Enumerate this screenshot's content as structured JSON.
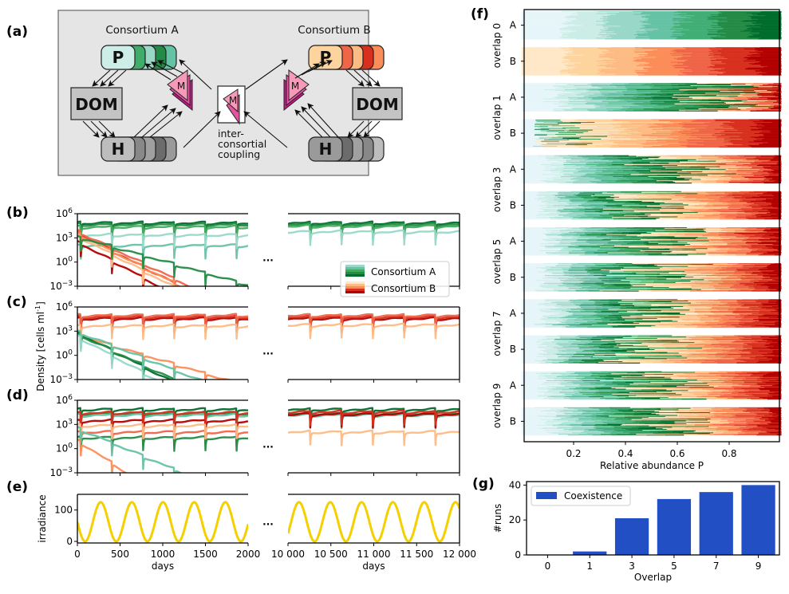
{
  "panel_labels": {
    "a": "(a)",
    "b": "(b)",
    "c": "(c)",
    "d": "(d)",
    "e": "(e)",
    "f": "(f)",
    "g": "(g)"
  },
  "diagram": {
    "consortium_a": "Consortium A",
    "consortium_b": "Consortium B",
    "p_label": "P",
    "h_label": "H",
    "dom_label": "DOM",
    "m_label": "M",
    "coupling_label": [
      "inter-",
      "consortial",
      "coupling"
    ],
    "colors": {
      "a_p": [
        "#cdeee6",
        "#41ab6c",
        "#9ad8c6",
        "#238b45",
        "#66c2a4"
      ],
      "b_p": [
        "#fdd49e",
        "#ef6548",
        "#fdbb84",
        "#d7301f",
        "#fc8d59"
      ],
      "h": [
        "#bdbdbd",
        "#888888",
        "#a0a0a0",
        "#6c6c6c",
        "#9a9a9a"
      ],
      "m": [
        "#f59ab8",
        "#e0559e",
        "#c7168a"
      ]
    }
  },
  "chart_data": [
    {
      "id": "b",
      "type": "line",
      "title": "",
      "ylabel": "",
      "yscale": "log",
      "ylim": [
        0.001,
        1000000
      ],
      "yticks": [
        "10^6",
        "10^3",
        "10^0",
        "10^-3"
      ],
      "xlim_left": [
        0,
        2000
      ],
      "xlim_right": [
        10000,
        12000
      ],
      "description": "Consortium A (greens) persists near 10^4-10^5 cells/ml; Consortium B (reds) decays to extinction within ~1400 days",
      "series": [
        {
          "name": "A1",
          "group": "A",
          "color": "#006d2c",
          "level_left": 4.8,
          "decay_left": 0,
          "level_right": 4.8
        },
        {
          "name": "A2",
          "group": "A",
          "color": "#238b45",
          "level_left": 4.6,
          "decay_left": 0,
          "level_right": 4.6
        },
        {
          "name": "A3",
          "group": "A",
          "color": "#41ab5d",
          "level_left": 4.3,
          "decay_left": 0,
          "level_right": 4.4
        },
        {
          "name": "A4",
          "group": "A",
          "color": "#66c2a4",
          "level_left": 2.0,
          "decay_left": 0,
          "level_right": null
        },
        {
          "name": "A5",
          "group": "A",
          "color": "#99d8c9",
          "level_left": 3.3,
          "decay_left": 0,
          "level_right": 3.7
        },
        {
          "name": "B1",
          "group": "B",
          "color": "#b30000",
          "level_left": 2.5,
          "decay_left": -0.0058,
          "level_right": null
        },
        {
          "name": "B2",
          "group": "B",
          "color": "#d7301f",
          "level_left": 3.6,
          "decay_left": -0.0055,
          "level_right": null
        },
        {
          "name": "B3",
          "group": "B",
          "color": "#ef6548",
          "level_left": 3.8,
          "decay_left": -0.0052,
          "level_right": null
        },
        {
          "name": "B4",
          "group": "B",
          "color": "#fc8d59",
          "level_left": 3.5,
          "decay_left": -0.0054,
          "level_right": null
        },
        {
          "name": "B5",
          "group": "B",
          "color": "#fdbb84",
          "level_left": 3.2,
          "decay_left": -0.0056,
          "level_right": null
        },
        {
          "name": "A6",
          "group": "A",
          "color": "#238b45",
          "level_left": 3.1,
          "decay_left": -0.003,
          "level_right": null
        }
      ],
      "legend": [
        "Consortium A",
        "Consortium B"
      ],
      "legend_position": "lower-right"
    },
    {
      "id": "c",
      "type": "line",
      "ylabel": "Density [cells ml^-1]",
      "yscale": "log",
      "ylim": [
        0.001,
        1000000
      ],
      "yticks": [
        "10^6",
        "10^3",
        "10^0",
        "10^-3"
      ],
      "xlim_left": [
        0,
        2000
      ],
      "xlim_right": [
        10000,
        12000
      ],
      "description": "Consortium B (reds) persists near 10^4-10^5; Consortium A (greens) decays to extinction",
      "series": [
        {
          "name": "B1",
          "group": "B",
          "color": "#b30000",
          "level_left": 4.5,
          "decay_left": 0,
          "level_right": 4.5
        },
        {
          "name": "B2",
          "group": "B",
          "color": "#d7301f",
          "level_left": 4.7,
          "decay_left": 0,
          "level_right": 4.7
        },
        {
          "name": "B3",
          "group": "B",
          "color": "#ef6548",
          "level_left": 4.9,
          "decay_left": 0,
          "level_right": 4.9
        },
        {
          "name": "B4",
          "group": "B",
          "color": "#fdbb84",
          "level_left": 3.6,
          "decay_left": 0,
          "level_right": 3.7
        },
        {
          "name": "B5",
          "group": "B",
          "color": "#fc8d59",
          "level_left": 2.5,
          "decay_left": -0.0032,
          "level_right": null
        },
        {
          "name": "A1",
          "group": "A",
          "color": "#006d2c",
          "level_left": 2.8,
          "decay_left": -0.0055,
          "level_right": null
        },
        {
          "name": "A2",
          "group": "A",
          "color": "#238b45",
          "level_left": 2.6,
          "decay_left": -0.005,
          "level_right": null
        },
        {
          "name": "A3",
          "group": "A",
          "color": "#66c2a4",
          "level_left": 2.9,
          "decay_left": -0.0042,
          "level_right": null
        },
        {
          "name": "A4",
          "group": "A",
          "color": "#99d8c9",
          "level_left": 2.3,
          "decay_left": -0.0058,
          "level_right": null
        }
      ]
    },
    {
      "id": "d",
      "type": "line",
      "yscale": "log",
      "ylim": [
        0.001,
        1000000
      ],
      "yticks": [
        "10^6",
        "10^3",
        "10^0",
        "10^-3"
      ],
      "xlim_left": [
        0,
        2000
      ],
      "xlim_right": [
        10000,
        12000
      ],
      "description": "Coexistence: members of both consortia persist at 10^1-10^5",
      "series": [
        {
          "name": "A1",
          "group": "A",
          "color": "#006d2c",
          "level_left": 4.8,
          "decay_left": 0,
          "level_right": 4.8
        },
        {
          "name": "A2",
          "group": "A",
          "color": "#238b45",
          "level_left": 4.3,
          "decay_left": 0,
          "level_right": 4.3
        },
        {
          "name": "A3",
          "group": "A",
          "color": "#66c2a4",
          "level_left": 4.1,
          "decay_left": 0,
          "level_right": 4.1
        },
        {
          "name": "B1",
          "group": "B",
          "color": "#b30000",
          "level_left": 3.4,
          "decay_left": 0,
          "level_right": 4.2
        },
        {
          "name": "B2",
          "group": "B",
          "color": "#d7301f",
          "level_left": 4.4,
          "decay_left": 0,
          "level_right": 4.5
        },
        {
          "name": "B3",
          "group": "B",
          "color": "#ef6548",
          "level_left": 2.0,
          "decay_left": 0,
          "level_right": null
        },
        {
          "name": "A4",
          "group": "A",
          "color": "#238b45",
          "level_left": 1.3,
          "decay_left": 0,
          "level_right": null
        },
        {
          "name": "B4",
          "group": "B",
          "color": "#fdbb84",
          "level_left": 2.8,
          "decay_left": 0,
          "level_right": 2.0
        },
        {
          "name": "A5",
          "group": "A",
          "color": "#66c2a4",
          "level_left": 2.5,
          "decay_left": -0.0045,
          "level_right": null
        },
        {
          "name": "B5",
          "group": "B",
          "color": "#fc8d59",
          "level_left": 1.0,
          "decay_left": -0.007,
          "level_right": null
        }
      ]
    },
    {
      "id": "e",
      "type": "line",
      "ylabel": "irradiance",
      "xlabel": "days",
      "ylim": [
        -5,
        150
      ],
      "yticks": [
        0,
        100
      ],
      "xlim_left": [
        0,
        2000
      ],
      "xlim_right": [
        10000,
        12000
      ],
      "xticks_left": [
        "0",
        "500",
        "1000",
        "1500",
        "2000"
      ],
      "xticks_right": [
        "10 000",
        "10 500",
        "11 000",
        "11 500",
        "12 000"
      ],
      "series": [
        {
          "name": "irradiance",
          "color": "#f5d000",
          "mean": 62.5,
          "amplitude": 62.5,
          "period_days": 365,
          "phase_peak_day": 273
        }
      ]
    },
    {
      "id": "f",
      "type": "heatmap",
      "xlabel": "Relative abundance P",
      "xlim": [
        0,
        1
      ],
      "xticks": [
        "0.2",
        "0.4",
        "0.6",
        "0.8"
      ],
      "groups": [
        "overlap 0",
        "overlap 1",
        "overlap 3",
        "overlap 5",
        "overlap 7",
        "overlap 9"
      ],
      "subgroups": [
        "A",
        "B"
      ],
      "rows_per_block": 40,
      "green_share": {
        "overlap 0": {
          "A": 1.0,
          "B": 0.03
        },
        "overlap 1": {
          "A": 0.78,
          "B": 0.1
        },
        "overlap 3": {
          "A": 0.62,
          "B": 0.5
        },
        "overlap 5": {
          "A": 0.55,
          "B": 0.55
        },
        "overlap 7": {
          "A": 0.5,
          "B": 0.48
        },
        "overlap 9": {
          "A": 0.55,
          "B": 0.55
        }
      },
      "colormap_A": [
        "#e5f5f9",
        "#ccece6",
        "#99d8c9",
        "#66c2a4",
        "#41ae76",
        "#238b45",
        "#006d2c"
      ],
      "colormap_B": [
        "#fee8c8",
        "#fdd49e",
        "#fdbb84",
        "#fc8d59",
        "#ef6548",
        "#d7301f",
        "#b30000"
      ]
    },
    {
      "id": "g",
      "type": "bar",
      "xlabel": "Overlap",
      "ylabel": "#runs",
      "categories": [
        "0",
        "1",
        "3",
        "5",
        "7",
        "9"
      ],
      "series": [
        {
          "name": "Coexistence",
          "values": [
            0,
            2,
            21,
            32,
            36,
            40
          ],
          "color": "#2250c4"
        }
      ],
      "ylim": [
        0,
        42
      ],
      "yticks": [
        0,
        20,
        40
      ],
      "legend": [
        "Coexistence"
      ],
      "legend_position": "upper-left"
    }
  ],
  "ellipsis": "...",
  "legend_labels": {
    "a": "Consortium A",
    "b": "Consortium B"
  }
}
